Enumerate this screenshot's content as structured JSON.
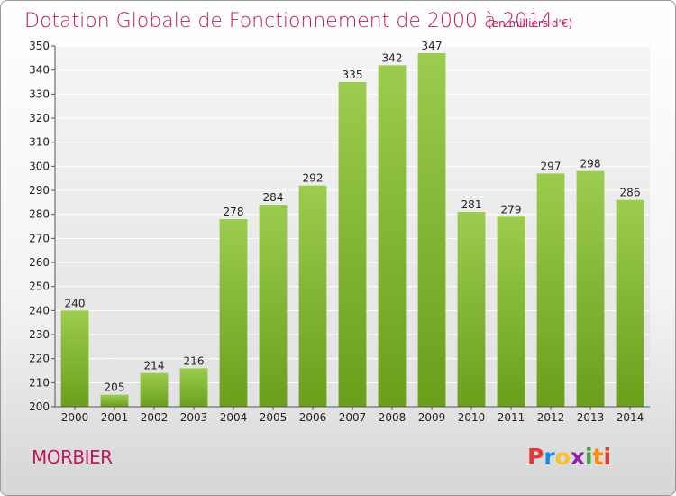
{
  "header": {
    "title": "Dotation Globale de Fonctionnement de 2000 à 2014",
    "unit_note": "(en milliers d'€)"
  },
  "footer": {
    "commune": "MORBIER",
    "logo_text": "Proxiti",
    "logo_letters": [
      {
        "ch": "P",
        "color": "#e53935"
      },
      {
        "ch": "r",
        "color": "#1e88e5"
      },
      {
        "ch": "o",
        "color": "#fbc02d"
      },
      {
        "ch": "x",
        "color": "#8e24aa"
      },
      {
        "ch": "i",
        "color": "#43a047"
      },
      {
        "ch": "t",
        "color": "#fb8c00"
      },
      {
        "ch": "i",
        "color": "#e53935"
      }
    ]
  },
  "colors": {
    "bar_light": "#9ccc4e",
    "bar_dark": "#6a9f1a",
    "title": "#c2185b"
  },
  "chart_data": {
    "type": "bar",
    "title": "Dotation Globale de Fonctionnement de 2000 à 2014",
    "subtitle": "(en milliers d'€)",
    "categories": [
      "2000",
      "2001",
      "2002",
      "2003",
      "2004",
      "2005",
      "2006",
      "2007",
      "2008",
      "2009",
      "2010",
      "2011",
      "2012",
      "2013",
      "2014"
    ],
    "values": [
      240,
      205,
      214,
      216,
      278,
      284,
      292,
      335,
      342,
      347,
      281,
      279,
      297,
      298,
      286
    ],
    "xlabel": "",
    "ylabel": "",
    "ylim": [
      200,
      350
    ],
    "yticks": [
      200,
      210,
      220,
      230,
      240,
      250,
      260,
      270,
      280,
      290,
      300,
      310,
      320,
      330,
      340,
      350
    ],
    "grid": true,
    "data_labels": true
  }
}
